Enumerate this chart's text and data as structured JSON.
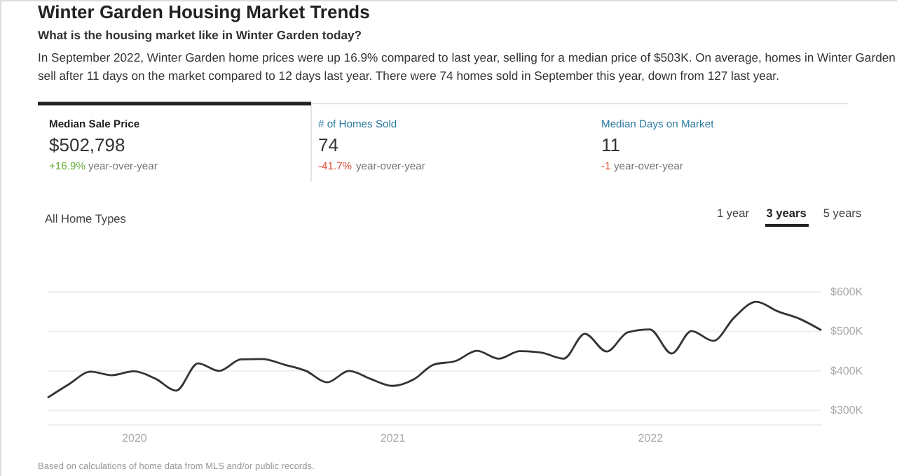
{
  "chart_data": {
    "type": "line",
    "title": "Winter Garden Housing Market Trends",
    "subtitle": "What is the housing market like in Winter Garden today?",
    "annotations": [
      "In September 2022, Winter Garden home prices were up 16.9% compared to last year, selling for a median price of $503K. On average, homes in Winter Garden",
      "sell after 11 days on the market compared to 12 days last year. There were 74 homes sold in September this year, down from 127 last year.",
      "Median Sale Price",
      "$502,798",
      "+16.9%",
      "year-over-year",
      "# of Homes Sold",
      "74",
      "-41.7%",
      "year-over-year",
      "Median Days on Market",
      "11",
      "-1",
      "year-over-year",
      "All Home Types",
      "1 year",
      "3 years",
      "5 years",
      "Based on calculations of home data from MLS and/or public records."
    ],
    "x": [
      "2019-09",
      "2019-10",
      "2019-11",
      "2019-12",
      "2020-01",
      "2020-02",
      "2020-03",
      "2020-04",
      "2020-05",
      "2020-06",
      "2020-07",
      "2020-08",
      "2020-09",
      "2020-10",
      "2020-11",
      "2020-12",
      "2021-01",
      "2021-02",
      "2021-03",
      "2021-04",
      "2021-05",
      "2021-06",
      "2021-07",
      "2021-08",
      "2021-09",
      "2021-10",
      "2021-11",
      "2021-12",
      "2022-01",
      "2022-02",
      "2022-03",
      "2022-04",
      "2022-05",
      "2022-06",
      "2022-07",
      "2022-08",
      "2022-09"
    ],
    "series": [
      {
        "color": "#333333",
        "values": [
          332000,
          366000,
          398000,
          389000,
          399000,
          380000,
          350000,
          419000,
          400000,
          429000,
          430000,
          416000,
          400000,
          371000,
          400000,
          380000,
          362000,
          379000,
          416000,
          425000,
          451000,
          431000,
          450000,
          446000,
          431000,
          494000,
          449000,
          498000,
          505000,
          444000,
          501000,
          476000,
          536000,
          575000,
          551000,
          532000,
          503000
        ]
      }
    ],
    "xlim": [
      "2019-09",
      "2022-09"
    ],
    "xticks": [
      "2020",
      "2021",
      "2022"
    ],
    "ylim": [
      265000,
      600000
    ],
    "yticks": [
      {
        "value": 300000,
        "label": "$300K"
      },
      {
        "value": 400000,
        "label": "$400K"
      },
      {
        "value": 500000,
        "label": "$500K"
      },
      {
        "value": 600000,
        "label": "$600K"
      }
    ],
    "grid": "y"
  }
}
